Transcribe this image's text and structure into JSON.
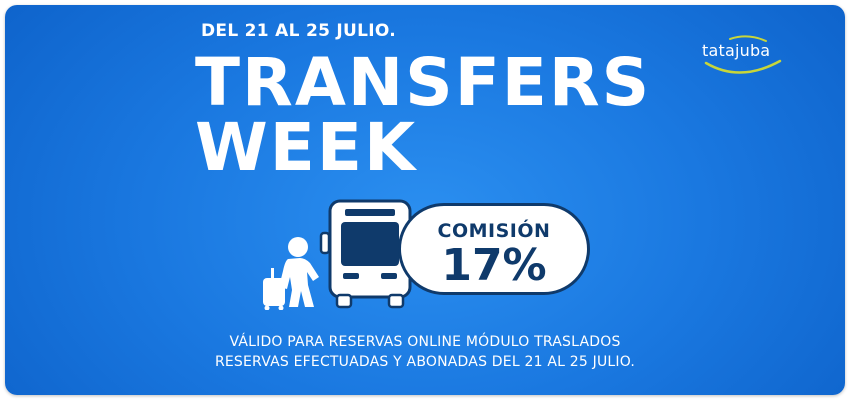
{
  "banner": {
    "dates": "DEL 21 AL 25 JULIO.",
    "title_line1": "TRANSFERS",
    "title_line2": "WEEK",
    "brand": "tatajuba",
    "commission_label": "COMISIÓN",
    "commission_value": "17%",
    "footer_line1": "VÁLIDO PARA RESERVAS ONLINE MÓDULO TRASLADOS",
    "footer_line2": "RESERVAS EFECTUADAS Y ABONADAS DEL 21 AL 25 JULIO."
  },
  "icons": {
    "traveler": "traveler-with-suitcase-icon",
    "bus": "bus-icon"
  },
  "colors": {
    "background": "#1a78e0",
    "text": "#ffffff",
    "pill_text": "#0f3a6b",
    "pill_border": "#0f3a6b",
    "logo_swoosh": "#c8d63a"
  }
}
